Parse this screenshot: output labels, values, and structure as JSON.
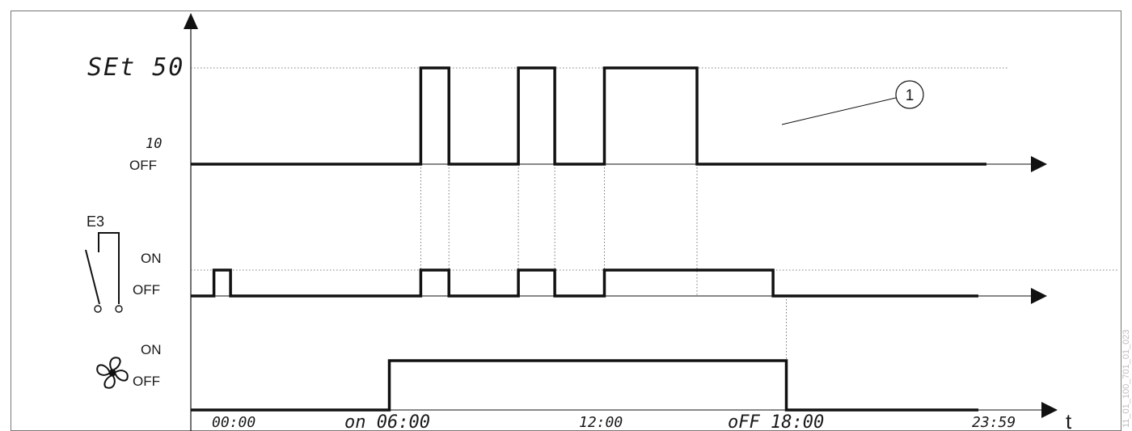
{
  "diagram": {
    "axis_unit": "t",
    "top_levels": {
      "set": "SEt  50",
      "mid": "10",
      "off": "OFF"
    },
    "relay": {
      "name": "E3",
      "on": "ON",
      "off": "OFF"
    },
    "fan": {
      "icon": "fan-icon",
      "on": "ON",
      "off": "OFF"
    },
    "callout": "1",
    "time_labels": [
      "00:00",
      "on  06:00",
      "12:00",
      "oFF  18:00",
      "23:59"
    ],
    "watermark": "11_01_100_701_01_023",
    "time_domain": [
      0,
      24
    ],
    "trace_top": [
      [
        0,
        "off"
      ],
      [
        6.95,
        "set"
      ],
      [
        7.8,
        "off"
      ],
      [
        9.9,
        "set"
      ],
      [
        11.0,
        "off"
      ],
      [
        12.5,
        "set"
      ],
      [
        15.3,
        "off"
      ]
    ],
    "trace_relay": [
      [
        0,
        "off"
      ],
      [
        0.7,
        "on"
      ],
      [
        1.2,
        "off"
      ],
      [
        6.95,
        "on"
      ],
      [
        7.8,
        "off"
      ],
      [
        9.9,
        "on"
      ],
      [
        11.0,
        "off"
      ],
      [
        12.5,
        "on"
      ],
      [
        17.6,
        "off"
      ]
    ],
    "trace_fan": [
      [
        0,
        "off"
      ],
      [
        6.0,
        "on"
      ],
      [
        18.0,
        "off"
      ]
    ]
  }
}
